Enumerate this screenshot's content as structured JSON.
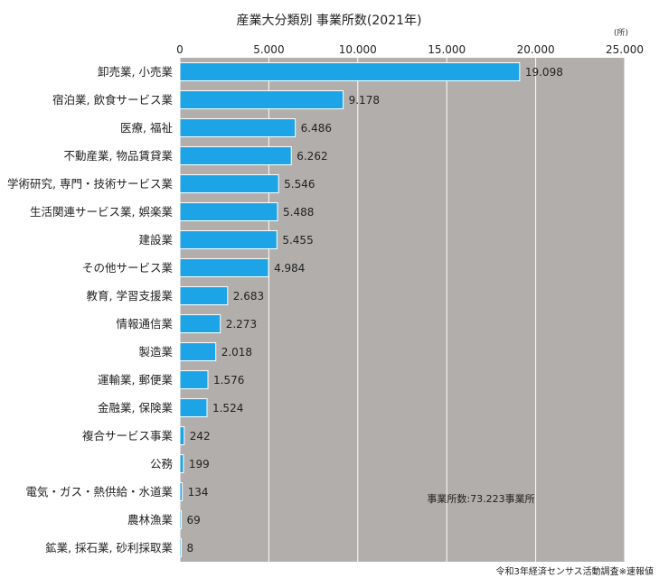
{
  "chart_data": {
    "type": "bar",
    "orientation": "horizontal",
    "title": "産業大分類別 事業所数(2021年)",
    "unit": "(所)",
    "xlim": [
      0,
      25000
    ],
    "ticks": [
      0,
      5000,
      10000,
      15000,
      20000,
      25000
    ],
    "tick_labels": [
      "0",
      "5.000",
      "10.000",
      "15.000",
      "20.000",
      "25.000"
    ],
    "grid": true,
    "bar_color": "#1ca4e6",
    "background_color": "#b1aeac",
    "categories": [
      "卸売業, 小売業",
      "宿泊業, 飲食サービス業",
      "医療, 福祉",
      "不動産業, 物品賃貸業",
      "学術研究, 専門・技術サービス業",
      "生活関連サービス業, 娯楽業",
      "建設業",
      "その他サービス業",
      "教育, 学習支援業",
      "情報通信業",
      "製造業",
      "運輸業, 郵便業",
      "金融業, 保険業",
      "複合サービス事業",
      "公務",
      "電気・ガス・熱供給・水道業",
      "農林漁業",
      "鉱業, 採石業, 砂利採取業"
    ],
    "values": [
      19098,
      9178,
      6486,
      6262,
      5546,
      5488,
      5455,
      4984,
      2683,
      2273,
      2018,
      1576,
      1524,
      242,
      199,
      134,
      69,
      8
    ],
    "value_labels": [
      "19.098",
      "9.178",
      "6.486",
      "6.262",
      "5.546",
      "5.488",
      "5.455",
      "4.984",
      "2.683",
      "2.273",
      "2.018",
      "1.576",
      "1.524",
      "242",
      "199",
      "134",
      "69",
      "8"
    ],
    "annotation": "事業所数:73.223事業所",
    "source": "令和3年経済センサス活動調査※速報値"
  }
}
